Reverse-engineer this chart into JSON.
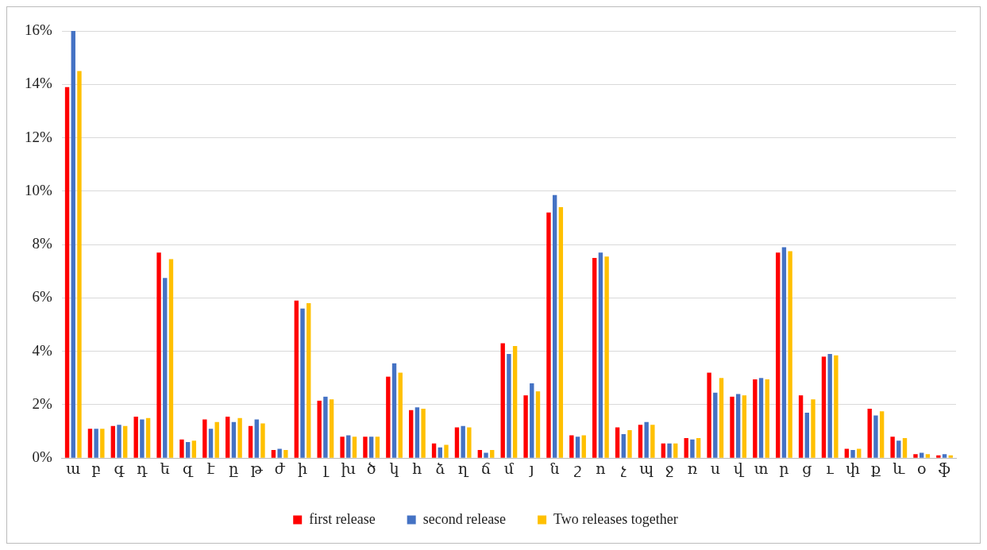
{
  "chart_data": {
    "type": "bar",
    "categories": [
      "ա",
      "բ",
      "գ",
      "դ",
      "ե",
      "զ",
      "է",
      "ը",
      "թ",
      "ժ",
      "ի",
      "լ",
      "խ",
      "ծ",
      "կ",
      "հ",
      "ձ",
      "ղ",
      "ճ",
      "մ",
      "յ",
      "ն",
      "շ",
      "ո",
      "չ",
      "պ",
      "ջ",
      "ռ",
      "ս",
      "վ",
      "տ",
      "ր",
      "ց",
      "ւ",
      "փ",
      "ք",
      "և",
      "օ",
      "ֆ"
    ],
    "series": [
      {
        "name": "first release",
        "color": "#ff0000",
        "values": [
          13.9,
          1.1,
          1.2,
          1.55,
          7.7,
          0.7,
          1.45,
          1.55,
          1.2,
          0.3,
          5.9,
          2.15,
          0.8,
          0.8,
          3.05,
          1.8,
          0.55,
          1.15,
          0.3,
          4.3,
          2.35,
          9.2,
          0.85,
          7.5,
          1.15,
          1.25,
          0.55,
          0.75,
          3.2,
          2.3,
          2.95,
          7.7,
          2.35,
          3.8,
          0.35,
          1.85,
          0.8,
          0.15,
          0.1
        ]
      },
      {
        "name": "second release",
        "color": "#4472c4",
        "values": [
          16.0,
          1.1,
          1.25,
          1.45,
          6.75,
          0.6,
          1.1,
          1.35,
          1.45,
          0.35,
          5.6,
          2.3,
          0.85,
          0.8,
          3.55,
          1.9,
          0.4,
          1.2,
          0.2,
          3.9,
          2.8,
          9.85,
          0.8,
          7.7,
          0.9,
          1.35,
          0.55,
          0.7,
          2.45,
          2.4,
          3.0,
          7.9,
          1.7,
          3.9,
          0.3,
          1.6,
          0.65,
          0.2,
          0.15
        ]
      },
      {
        "name": "Two releases together",
        "color": "#ffc000",
        "values": [
          14.5,
          1.1,
          1.2,
          1.5,
          7.45,
          0.65,
          1.35,
          1.5,
          1.3,
          0.3,
          5.8,
          2.2,
          0.8,
          0.8,
          3.2,
          1.85,
          0.5,
          1.15,
          0.3,
          4.2,
          2.5,
          9.4,
          0.85,
          7.55,
          1.05,
          1.25,
          0.55,
          0.75,
          3.0,
          2.35,
          2.95,
          7.75,
          2.2,
          3.85,
          0.35,
          1.75,
          0.75,
          0.15,
          0.1
        ]
      }
    ],
    "ylim": [
      0,
      16
    ],
    "yticks": [
      {
        "value": 0,
        "label": "0%"
      },
      {
        "value": 2,
        "label": "2%"
      },
      {
        "value": 4,
        "label": "4%"
      },
      {
        "value": 6,
        "label": "6%"
      },
      {
        "value": 8,
        "label": "8%"
      },
      {
        "value": 10,
        "label": "10%"
      },
      {
        "value": 12,
        "label": "12%"
      },
      {
        "value": 14,
        "label": "14%"
      },
      {
        "value": 16,
        "label": "16%"
      }
    ],
    "grid": "y",
    "legend": "bottom"
  }
}
